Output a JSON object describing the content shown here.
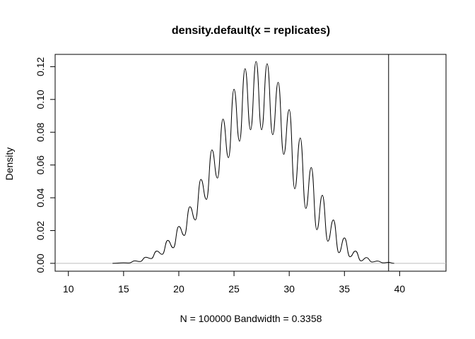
{
  "chart_data": {
    "type": "line",
    "title": "density.default(x = replicates)",
    "xlabel": "N = 100000   Bandwidth = 0.3358",
    "ylabel": "Density",
    "xlim": [
      8.8,
      44.2
    ],
    "ylim": [
      -0.0048,
      0.1275
    ],
    "x_ticks": [
      10,
      15,
      20,
      25,
      30,
      35,
      40
    ],
    "x_tick_labels": [
      "10",
      "15",
      "20",
      "25",
      "30",
      "35",
      "40"
    ],
    "y_ticks": [
      0.0,
      0.02,
      0.04,
      0.06,
      0.08,
      0.1,
      0.12
    ],
    "y_tick_labels": [
      "0.00",
      "0.02",
      "0.04",
      "0.06",
      "0.08",
      "0.10",
      "0.12"
    ],
    "baseline": 0,
    "vline_x": 39,
    "line_color": "#000000",
    "baseline_color": "#bebebe",
    "series": [
      {
        "x": [
          14,
          15,
          15.5,
          16,
          16.5,
          17,
          17.5,
          18,
          18.5,
          19,
          19.5,
          20,
          20.5,
          21,
          21.5,
          22,
          22.5,
          23,
          23.5,
          24,
          24.5,
          25,
          25.5,
          26,
          26.5,
          27,
          27.5,
          28,
          28.5,
          29,
          29.5,
          30,
          30.5,
          31,
          31.5,
          32,
          32.5,
          33,
          33.5,
          34,
          34.5,
          35,
          35.5,
          36,
          36.5,
          37,
          37.5,
          38,
          38.5,
          39,
          39.5
        ],
        "y": [
          0.0,
          0.0003,
          0.0002,
          0.0015,
          0.0011,
          0.0037,
          0.0029,
          0.0075,
          0.0055,
          0.014,
          0.0095,
          0.0225,
          0.017,
          0.0345,
          0.0265,
          0.0512,
          0.039,
          0.0692,
          0.052,
          0.088,
          0.0645,
          0.1062,
          0.0745,
          0.1188,
          0.0815,
          0.1232,
          0.0815,
          0.1218,
          0.0785,
          0.1105,
          0.0665,
          0.0938,
          0.0455,
          0.0765,
          0.0335,
          0.0585,
          0.0205,
          0.0415,
          0.0135,
          0.0265,
          0.0065,
          0.0155,
          0.004,
          0.0075,
          0.0015,
          0.0035,
          0.0008,
          0.0014,
          0.0003,
          0.0006,
          0.0
        ]
      }
    ]
  }
}
